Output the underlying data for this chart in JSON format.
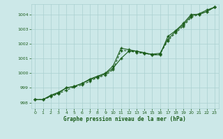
{
  "x": [
    0,
    1,
    2,
    3,
    4,
    5,
    6,
    7,
    8,
    9,
    10,
    11,
    12,
    13,
    14,
    15,
    16,
    17,
    18,
    19,
    20,
    21,
    22,
    23
  ],
  "series1": [
    998.2,
    998.2,
    998.5,
    998.7,
    999.0,
    999.1,
    999.3,
    999.6,
    999.8,
    1000.0,
    1000.5,
    1001.7,
    1001.6,
    1001.5,
    1001.4,
    1001.25,
    1001.25,
    1002.5,
    1002.9,
    1003.4,
    1004.0,
    1004.0,
    1004.2,
    1004.5
  ],
  "series2": [
    998.2,
    998.2,
    998.45,
    998.65,
    999.0,
    999.1,
    999.3,
    999.55,
    999.75,
    999.95,
    1000.35,
    1001.0,
    1001.5,
    1001.5,
    1001.35,
    1001.3,
    1001.35,
    1002.3,
    1002.85,
    1003.3,
    1003.9,
    1004.05,
    1004.3,
    1004.5
  ],
  "series3": [
    998.2,
    998.2,
    998.4,
    998.6,
    998.85,
    999.05,
    999.2,
    999.45,
    999.7,
    999.85,
    1000.25,
    1001.55,
    1001.52,
    1001.4,
    1001.35,
    1001.25,
    1001.3,
    1002.2,
    1002.75,
    1003.2,
    1003.8,
    1004.0,
    1004.2,
    1004.5
  ],
  "line_color": "#1a5c1a",
  "bg_color": "#cce8e8",
  "grid_color": "#aad0d0",
  "xlabel": "Graphe pression niveau de la mer (hPa)",
  "ylim": [
    997.6,
    1004.7
  ],
  "xlim": [
    -0.5,
    23.5
  ],
  "yticks": [
    998,
    999,
    1000,
    1001,
    1002,
    1003,
    1004
  ],
  "xticks": [
    0,
    1,
    2,
    3,
    4,
    5,
    6,
    7,
    8,
    9,
    10,
    11,
    12,
    13,
    14,
    15,
    16,
    17,
    18,
    19,
    20,
    21,
    22,
    23
  ]
}
